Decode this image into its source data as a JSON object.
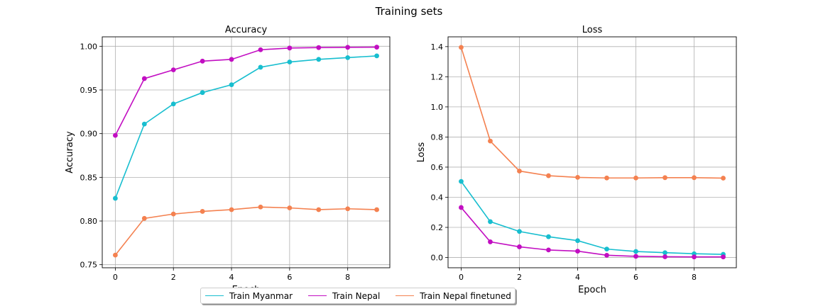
{
  "figure": {
    "title": "Training sets"
  },
  "colors": {
    "Train Myanmar": "#17becf",
    "Train Nepal": "#c20ec2",
    "Train Nepal finetuned": "#f48150"
  },
  "legend": {
    "entries": [
      "Train Myanmar",
      "Train Nepal",
      "Train Nepal finetuned"
    ]
  },
  "chart_data": [
    {
      "type": "line",
      "title": "Accuracy",
      "xlabel": "Epoch",
      "ylabel": "Accuracy",
      "x": [
        0,
        1,
        2,
        3,
        4,
        5,
        6,
        7,
        8,
        9
      ],
      "xlim": [
        -0.45,
        9.45
      ],
      "ylim": [
        0.7465,
        1.0108
      ],
      "xticks": [
        0,
        2,
        4,
        6,
        8
      ],
      "yticks": [
        0.75,
        0.8,
        0.85,
        0.9,
        0.95,
        1.0
      ],
      "ytick_labels": [
        "0.75",
        "0.80",
        "0.85",
        "0.90",
        "0.95",
        "1.00"
      ],
      "grid": true,
      "series": [
        {
          "name": "Train Myanmar",
          "values": [
            0.826,
            0.911,
            0.934,
            0.947,
            0.956,
            0.976,
            0.982,
            0.985,
            0.987,
            0.989
          ]
        },
        {
          "name": "Train Nepal",
          "values": [
            0.898,
            0.963,
            0.973,
            0.983,
            0.985,
            0.996,
            0.998,
            0.9985,
            0.9988,
            0.999
          ]
        },
        {
          "name": "Train Nepal finetuned",
          "values": [
            0.761,
            0.803,
            0.808,
            0.811,
            0.813,
            0.816,
            0.815,
            0.813,
            0.814,
            0.813
          ]
        }
      ]
    },
    {
      "type": "line",
      "title": "Loss",
      "xlabel": "Epoch",
      "ylabel": "Loss",
      "x": [
        0,
        1,
        2,
        3,
        4,
        5,
        6,
        7,
        8,
        9
      ],
      "xlim": [
        -0.45,
        9.45
      ],
      "ylim": [
        -0.068,
        1.465
      ],
      "xticks": [
        0,
        2,
        4,
        6,
        8
      ],
      "yticks": [
        0.0,
        0.2,
        0.4,
        0.6,
        0.8,
        1.0,
        1.2,
        1.4
      ],
      "ytick_labels": [
        "0.0",
        "0.2",
        "0.4",
        "0.6",
        "0.8",
        "1.0",
        "1.2",
        "1.4"
      ],
      "grid": true,
      "series": [
        {
          "name": "Train Myanmar",
          "values": [
            0.505,
            0.238,
            0.173,
            0.138,
            0.112,
            0.056,
            0.04,
            0.032,
            0.025,
            0.021
          ]
        },
        {
          "name": "Train Nepal",
          "values": [
            0.332,
            0.104,
            0.071,
            0.05,
            0.042,
            0.015,
            0.008,
            0.005,
            0.004,
            0.004
          ]
        },
        {
          "name": "Train Nepal finetuned",
          "values": [
            1.395,
            0.773,
            0.574,
            0.543,
            0.532,
            0.528,
            0.528,
            0.53,
            0.53,
            0.527
          ]
        }
      ]
    }
  ]
}
